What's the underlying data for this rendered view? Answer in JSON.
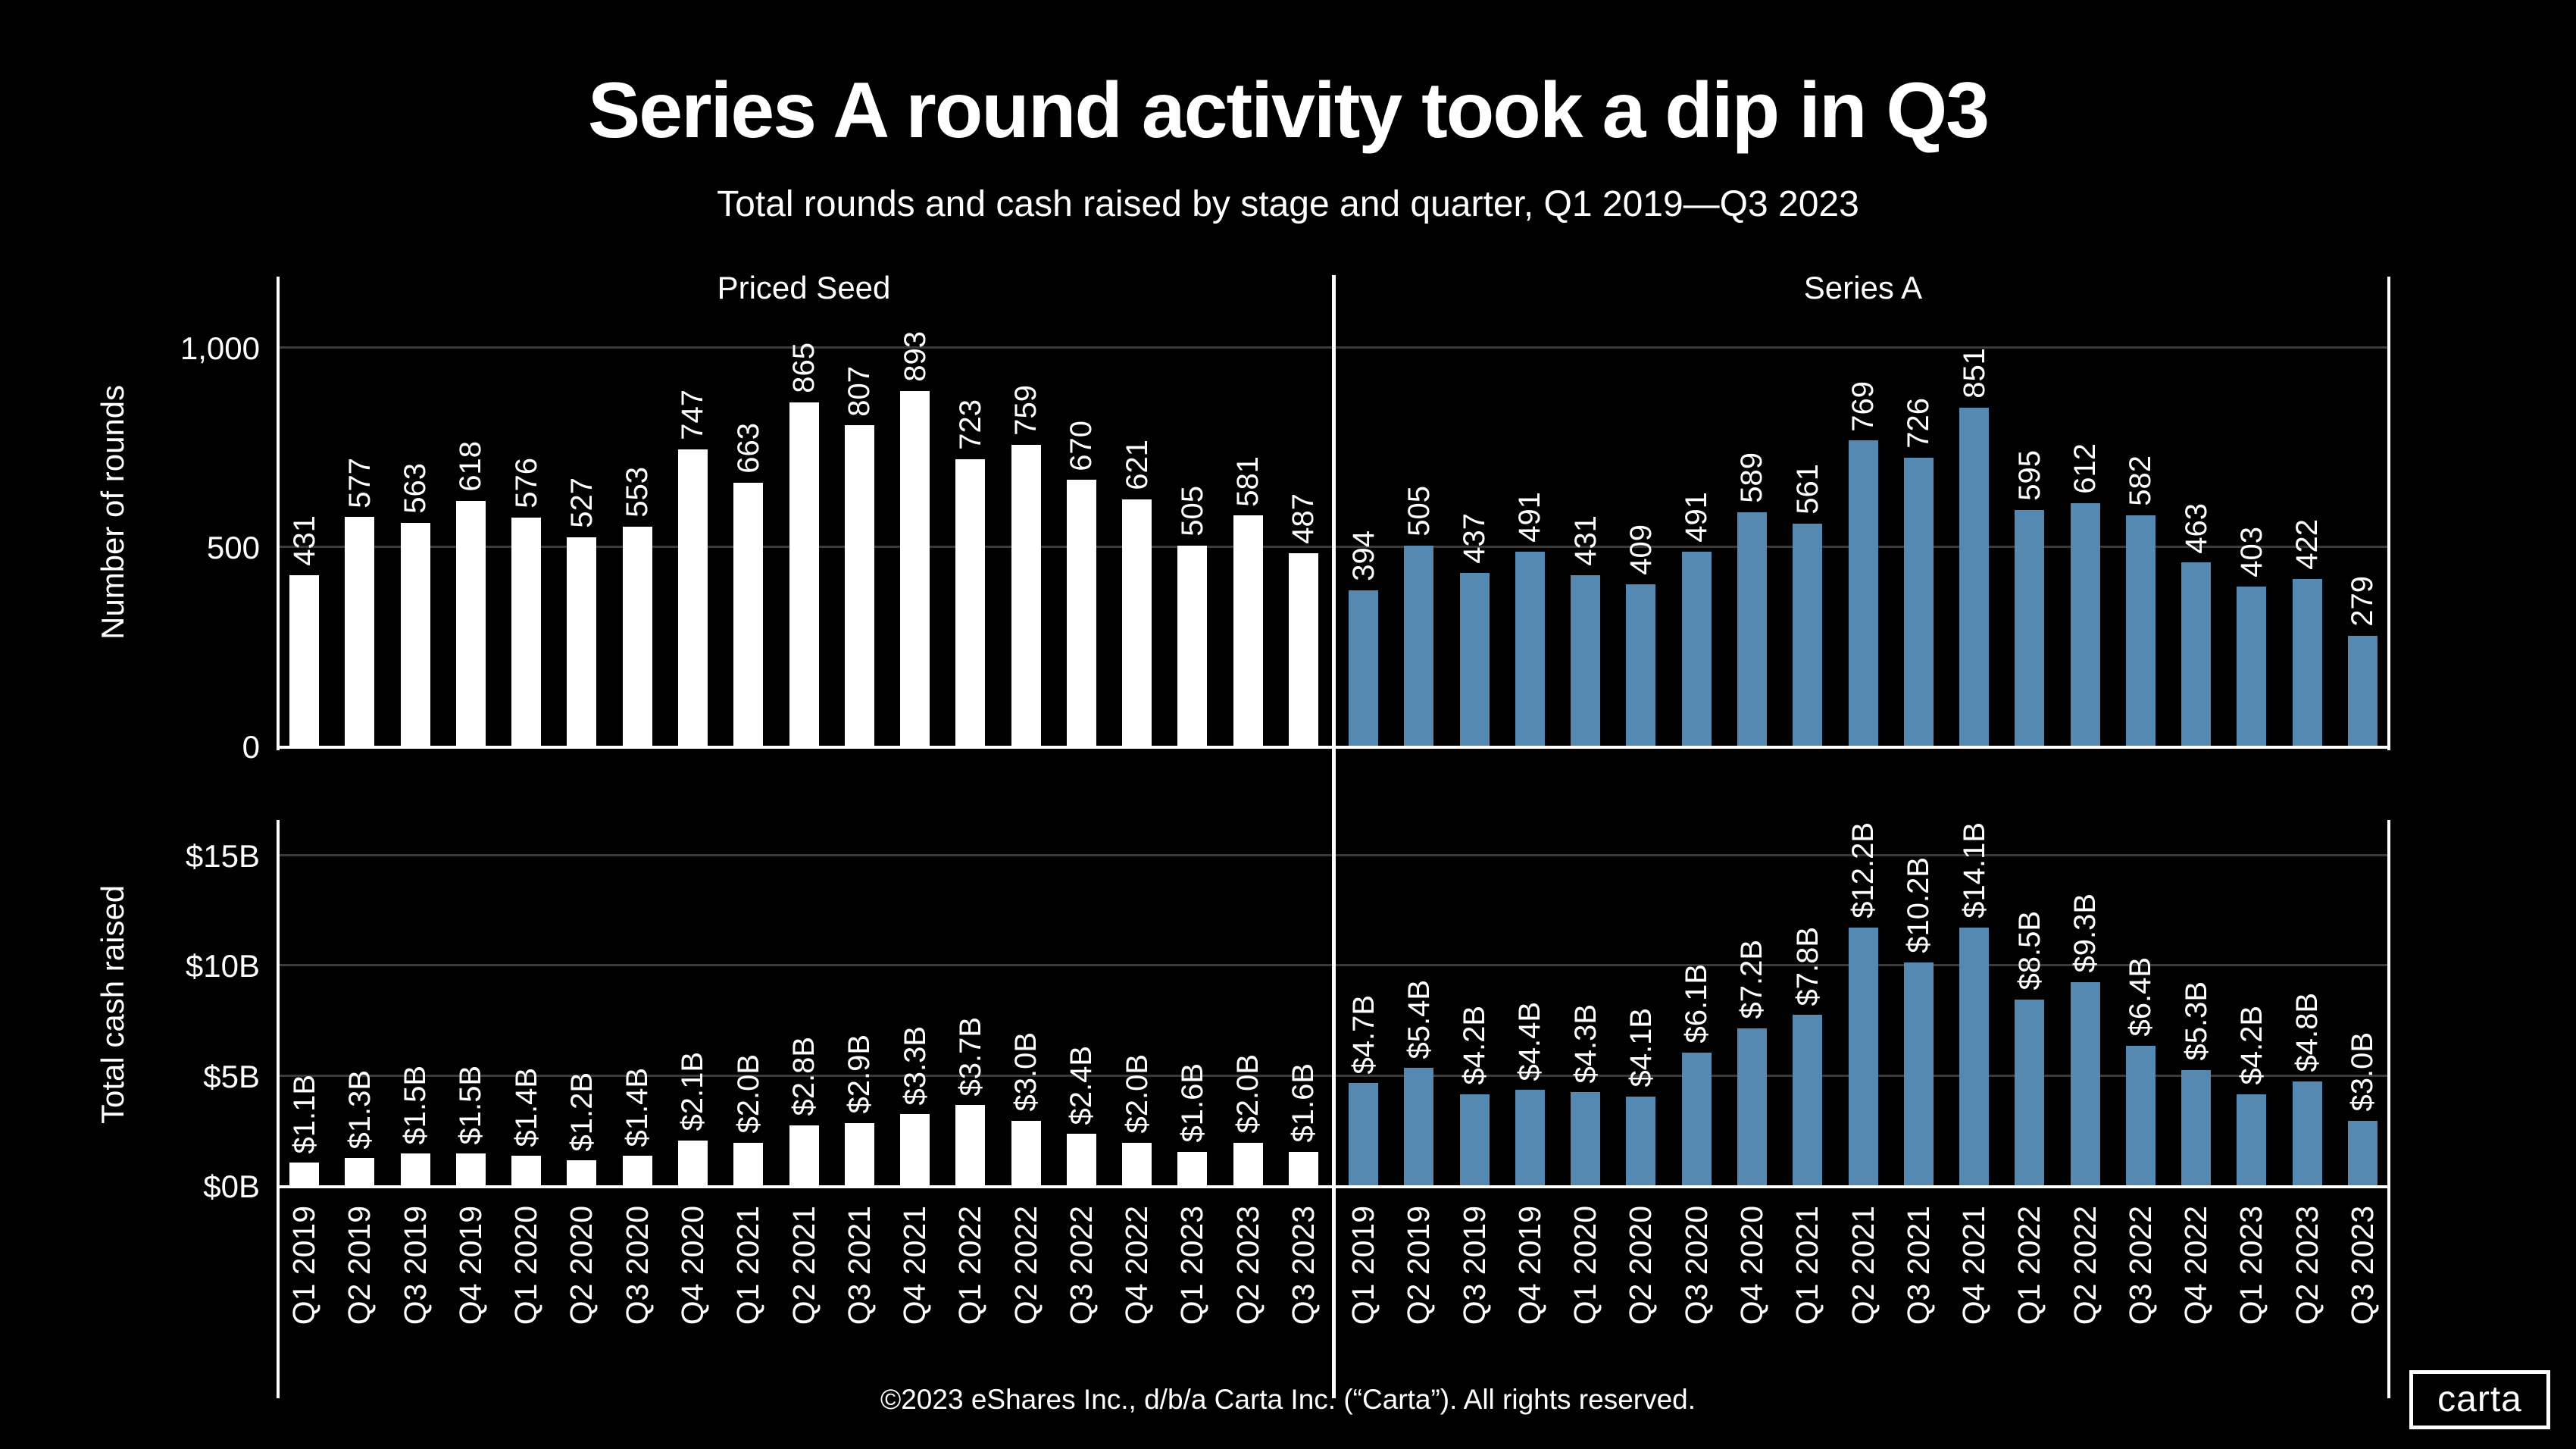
{
  "title": "Series A round activity took a dip in Q3",
  "subtitle": "Total rounds and cash raised by stage and quarter, Q1 2019—Q3 2023",
  "footer": "©2023 eShares Inc., d/b/a Carta Inc. (“Carta”). All rights reserved.",
  "logo": {
    "text": "carta"
  },
  "colors": {
    "background": "#000000",
    "priced_seed_bar": "#ffffff",
    "series_a_bar": "#5589b2",
    "gridline": "#3a3a3a",
    "axis_line": "#ffffff",
    "text": "#ffffff"
  },
  "chart_data": {
    "type": "bar",
    "facets": [
      "Priced Seed",
      "Series A"
    ],
    "categories": [
      "Q1 2019",
      "Q2 2019",
      "Q3 2019",
      "Q4 2019",
      "Q1 2020",
      "Q2 2020",
      "Q3 2020",
      "Q4 2020",
      "Q1 2021",
      "Q2 2021",
      "Q3 2021",
      "Q4 2021",
      "Q1 2022",
      "Q2 2022",
      "Q3 2022",
      "Q4 2022",
      "Q1 2023",
      "Q2 2023",
      "Q3 2023"
    ],
    "rows": [
      {
        "ylabel": "Number of rounds",
        "ylim": [
          0,
          1180
        ],
        "grid": true,
        "yticks": [
          {
            "value": 0,
            "label": "0"
          },
          {
            "value": 500,
            "label": "500"
          },
          {
            "value": 1000,
            "label": "1,000"
          }
        ],
        "series": [
          {
            "name": "Priced Seed",
            "color": "#ffffff",
            "values": [
              431,
              577,
              563,
              618,
              576,
              527,
              553,
              747,
              663,
              865,
              807,
              893,
              723,
              759,
              670,
              621,
              505,
              581,
              487
            ],
            "labels": [
              "431",
              "577",
              "563",
              "618",
              "576",
              "527",
              "553",
              "747",
              "663",
              "865",
              "807",
              "893",
              "723",
              "759",
              "670",
              "621",
              "505",
              "581",
              "487"
            ]
          },
          {
            "name": "Series A",
            "color": "#5589b2",
            "values": [
              394,
              505,
              437,
              491,
              431,
              409,
              491,
              589,
              561,
              769,
              726,
              851,
              595,
              612,
              582,
              463,
              403,
              422,
              279
            ],
            "labels": [
              "394",
              "505",
              "437",
              "491",
              "431",
              "409",
              "491",
              "589",
              "561",
              "769",
              "726",
              "851",
              "595",
              "612",
              "582",
              "463",
              "403",
              "422",
              "279"
            ]
          }
        ]
      },
      {
        "ylabel": "Total cash raised",
        "ylim": [
          0,
          16.55
        ],
        "grid": true,
        "yticks": [
          {
            "value": 0,
            "label": "$0B"
          },
          {
            "value": 5,
            "label": "$5B"
          },
          {
            "value": 10,
            "label": "$10B"
          },
          {
            "value": 15,
            "label": "$15B"
          }
        ],
        "series": [
          {
            "name": "Priced Seed",
            "color": "#ffffff",
            "values": [
              1.1,
              1.3,
              1.5,
              1.5,
              1.4,
              1.2,
              1.4,
              2.1,
              2.0,
              2.8,
              2.9,
              3.3,
              3.7,
              3.0,
              2.4,
              2.0,
              1.6,
              2.0,
              1.6
            ],
            "labels": [
              "$1.1B",
              "$1.3B",
              "$1.5B",
              "$1.5B",
              "$1.4B",
              "$1.2B",
              "$1.4B",
              "$2.1B",
              "$2.0B",
              "$2.8B",
              "$2.9B",
              "$3.3B",
              "$3.7B",
              "$3.0B",
              "$2.4B",
              "$2.0B",
              "$1.6B",
              "$2.0B",
              "$1.6B"
            ]
          },
          {
            "name": "Series A",
            "color": "#5589b2",
            "values": [
              4.7,
              5.4,
              4.2,
              4.4,
              4.3,
              4.1,
              6.1,
              7.2,
              7.8,
              12.2,
              10.2,
              14.1,
              8.5,
              9.3,
              6.4,
              5.3,
              4.2,
              4.8,
              3.0
            ],
            "labels": [
              "$4.7B",
              "$5.4B",
              "$4.2B",
              "$4.4B",
              "$4.3B",
              "$4.1B",
              "$6.1B",
              "$7.2B",
              "$7.8B",
              "$12.2B",
              "$10.2B",
              "$14.1B",
              "$8.5B",
              "$9.3B",
              "$6.4B",
              "$5.3B",
              "$4.2B",
              "$4.8B",
              "$3.0B"
            ]
          }
        ]
      }
    ]
  }
}
